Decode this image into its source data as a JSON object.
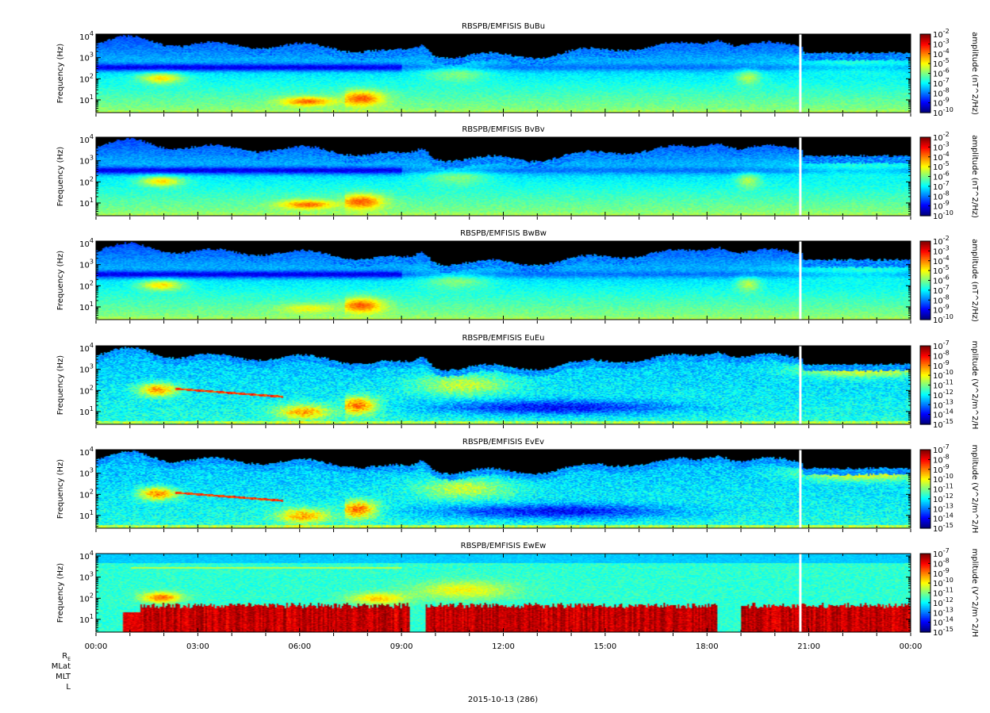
{
  "chart_data": [
    {
      "type": "heatmap",
      "title": "RBSPB/EMFISIS  BuBu",
      "ylabel": "Frequency (Hz)",
      "ylim": [
        2.5,
        13000
      ],
      "yscale": "log",
      "ytick_labels": [
        "10^1",
        "10^2",
        "10^3",
        "10^4"
      ],
      "colorbar": {
        "label": "amplitude (nT^2/Hz)",
        "scale": "log",
        "range": [
          1e-10,
          0.01
        ],
        "tick_labels": [
          "10^-2",
          "10^-3",
          "10^-4",
          "10^-5",
          "10^-6",
          "10^-7",
          "10^-8",
          "10^-9",
          "10^-10"
        ]
      },
      "kind": "B"
    },
    {
      "type": "heatmap",
      "title": "RBSPB/EMFISIS  BvBv",
      "ylabel": "Frequency (Hz)",
      "ylim": [
        2.5,
        13000
      ],
      "yscale": "log",
      "ytick_labels": [
        "10^1",
        "10^2",
        "10^3",
        "10^4"
      ],
      "colorbar": {
        "label": "amplitude (nT^2/Hz)",
        "scale": "log",
        "range": [
          1e-10,
          0.01
        ],
        "tick_labels": [
          "10^-2",
          "10^-3",
          "10^-4",
          "10^-5",
          "10^-6",
          "10^-7",
          "10^-8",
          "10^-9",
          "10^-10"
        ]
      },
      "kind": "B"
    },
    {
      "type": "heatmap",
      "title": "RBSPB/EMFISIS  BwBw",
      "ylabel": "Frequency (Hz)",
      "ylim": [
        2.5,
        13000
      ],
      "yscale": "log",
      "ytick_labels": [
        "10^1",
        "10^2",
        "10^3",
        "10^4"
      ],
      "colorbar": {
        "label": "amplitude (nT^2/Hz)",
        "scale": "log",
        "range": [
          1e-10,
          0.01
        ],
        "tick_labels": [
          "10^-2",
          "10^-3",
          "10^-4",
          "10^-5",
          "10^-6",
          "10^-7",
          "10^-8",
          "10^-9",
          "10^-10"
        ]
      },
      "kind": "Bw"
    },
    {
      "type": "heatmap",
      "title": "RBSPB/EMFISIS  EuEu",
      "ylabel": "Frequency (Hz)",
      "ylim": [
        2.5,
        13000
      ],
      "yscale": "log",
      "ytick_labels": [
        "10^1",
        "10^2",
        "10^3",
        "10^4"
      ],
      "colorbar": {
        "label": "mplitude (V^2/m^2/H",
        "scale": "log",
        "range": [
          1e-15,
          1e-07
        ],
        "tick_labels": [
          "10^-7",
          "10^-8",
          "10^-9",
          "10^-10",
          "10^-11",
          "10^-12",
          "10^-13",
          "10^-14",
          "10^-15"
        ]
      },
      "kind": "E"
    },
    {
      "type": "heatmap",
      "title": "RBSPB/EMFISIS  EvEv",
      "ylabel": "Frequency (Hz)",
      "ylim": [
        2.5,
        13000
      ],
      "yscale": "log",
      "ytick_labels": [
        "10^1",
        "10^2",
        "10^3",
        "10^4"
      ],
      "colorbar": {
        "label": "mplitude (V^2/m^2/H",
        "scale": "log",
        "range": [
          1e-15,
          1e-07
        ],
        "tick_labels": [
          "10^-7",
          "10^-8",
          "10^-9",
          "10^-10",
          "10^-11",
          "10^-12",
          "10^-13",
          "10^-14",
          "10^-15"
        ]
      },
      "kind": "E"
    },
    {
      "type": "heatmap",
      "title": "RBSPB/EMFISIS  EwEw",
      "ylabel": "Frequency (Hz)",
      "ylim": [
        2.5,
        13000
      ],
      "yscale": "log",
      "ytick_labels": [
        "10^1",
        "10^2",
        "10^3",
        "10^4"
      ],
      "colorbar": {
        "label": "mplitude (V^2/m^2/H",
        "scale": "log",
        "range": [
          1e-15,
          1e-07
        ],
        "tick_labels": [
          "10^-7",
          "10^-8",
          "10^-9",
          "10^-10",
          "10^-11",
          "10^-12",
          "10^-13",
          "10^-14",
          "10^-15"
        ]
      },
      "kind": "Ew"
    }
  ],
  "x_axis": {
    "range": [
      "00:00",
      "24:00"
    ],
    "tick_labels": [
      "00:00",
      "03:00",
      "06:00",
      "09:00",
      "12:00",
      "15:00",
      "18:00",
      "21:00",
      "00:00"
    ],
    "data_gap_hour": 20.75
  },
  "ephemeris_labels": [
    "R",
    "MLat",
    "MLT",
    "L"
  ],
  "ephemeris_subscript": "E",
  "date_label": "2015-10-13 (286)"
}
